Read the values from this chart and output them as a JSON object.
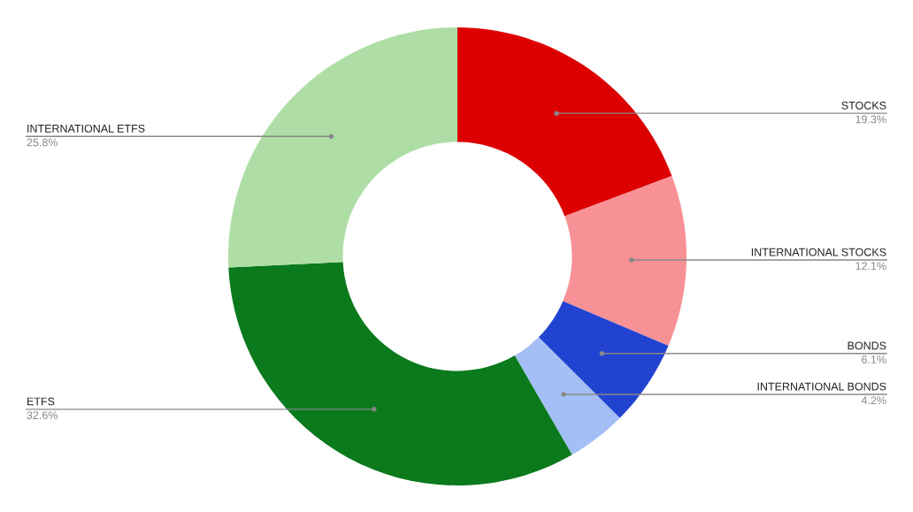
{
  "chart_data": {
    "type": "donut",
    "categories": [
      "STOCKS",
      "INTERNATIONAL STOCKS",
      "BONDS",
      "INTERNATIONAL BONDS",
      "ETFS",
      "INTERNATIONAL ETFS"
    ],
    "values": [
      19.3,
      12.1,
      6.1,
      4.2,
      32.6,
      25.8
    ],
    "value_labels": [
      "19.3%",
      "12.1%",
      "6.1%",
      "4.2%",
      "32.6%",
      "25.8%"
    ],
    "colors": [
      "#dd0000",
      "#f79195",
      "#2243d0",
      "#a4bff5",
      "#0a7a1c",
      "#aedea6"
    ],
    "legend": false
  }
}
